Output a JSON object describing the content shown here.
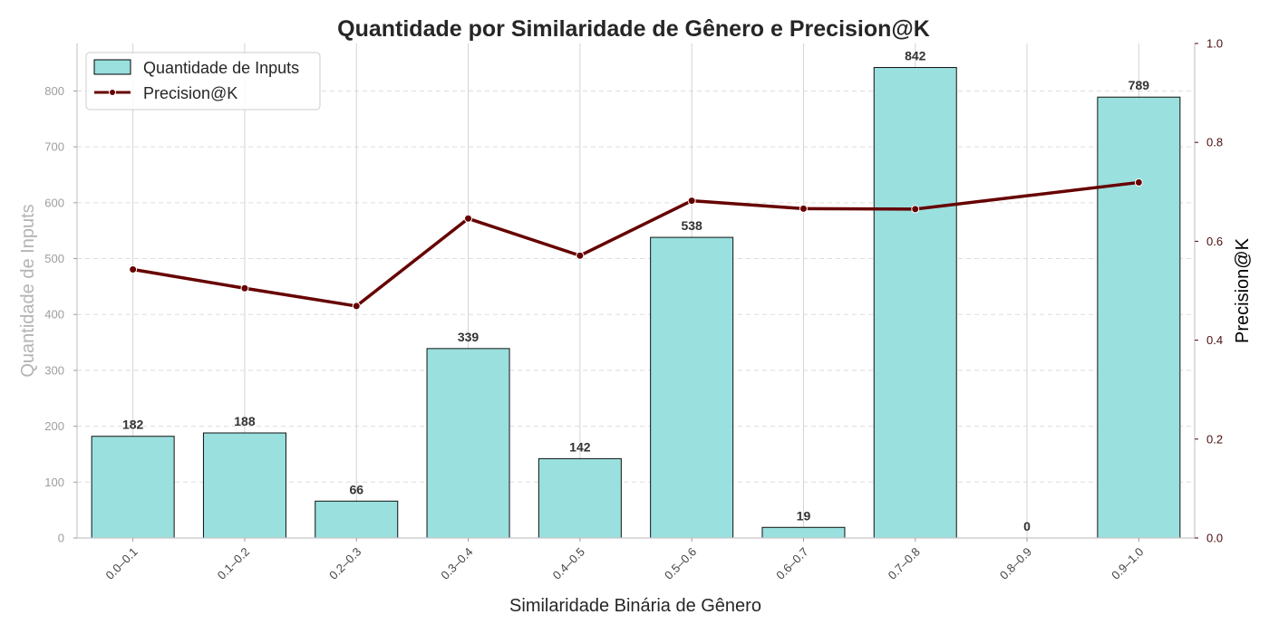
{
  "chart_data": {
    "type": "bar",
    "title": "Quantidade por Similaridade de Gênero e Precision@K",
    "xlabel": "Similaridade Binária de Gênero",
    "ylabel": "Quantidade de Inputs",
    "ylabel_right": "Precision@K",
    "categories": [
      "0.0–0.1",
      "0.1–0.2",
      "0.2–0.3",
      "0.3–0.4",
      "0.4–0.5",
      "0.5–0.6",
      "0.6–0.7",
      "0.7–0.8",
      "0.8–0.9",
      "0.9–1.0"
    ],
    "series": [
      {
        "name": "Quantidade de Inputs",
        "type": "bar",
        "axis": "left",
        "color": "#99e0de",
        "values": [
          182,
          188,
          66,
          339,
          142,
          538,
          19,
          842,
          0,
          789
        ]
      },
      {
        "name": "Precision@K",
        "type": "line",
        "axis": "right",
        "color": "#660000",
        "values": [
          0.543,
          0.505,
          0.469,
          0.646,
          0.571,
          0.682,
          0.666,
          0.665,
          0.692,
          0.719
        ],
        "markers": [
          true,
          true,
          true,
          true,
          true,
          true,
          true,
          true,
          false,
          true
        ]
      }
    ],
    "ylim": [
      0,
      885
    ],
    "yticks": [
      0,
      100,
      200,
      300,
      400,
      500,
      600,
      700,
      800
    ],
    "ylim_right": [
      0,
      1.0
    ],
    "yticks_right": [
      0.0,
      0.2,
      0.4,
      0.6,
      0.8,
      1.0
    ],
    "grid": true,
    "legend_position": "top-left"
  }
}
